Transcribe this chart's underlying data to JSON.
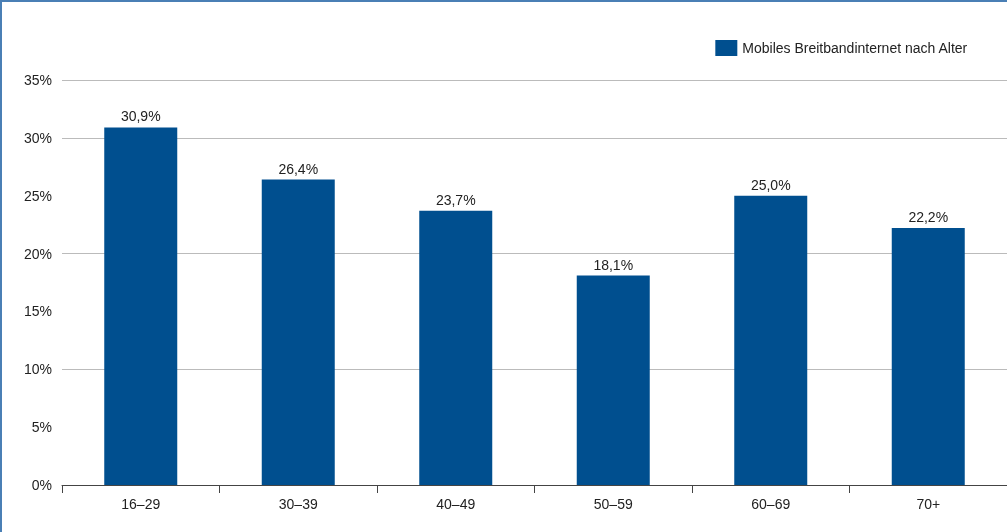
{
  "chart_data": {
    "type": "bar",
    "categories": [
      "16–29",
      "30–39",
      "40–49",
      "50–59",
      "60–69",
      "70+"
    ],
    "series": [
      {
        "name": "Mobiles Breitbandinternet nach Alter",
        "color": "#004f8f",
        "values": [
          30.9,
          26.4,
          23.7,
          18.1,
          25.0,
          22.2
        ],
        "value_labels": [
          "30,9%",
          "26,4%",
          "23,7%",
          "18,1%",
          "25,0%",
          "22,2%"
        ]
      }
    ],
    "ylim": [
      0,
      35
    ],
    "yticks": [
      {
        "value": 0,
        "label": "0%"
      },
      {
        "value": 5,
        "label": "5%"
      },
      {
        "value": 10,
        "label": "10%"
      },
      {
        "value": 15,
        "label": "15%"
      },
      {
        "value": 20,
        "label": "20%"
      },
      {
        "value": 25,
        "label": "25%"
      },
      {
        "value": 30,
        "label": "30%"
      },
      {
        "value": 35,
        "label": "35%"
      }
    ],
    "grid": "y",
    "legend": "top right"
  }
}
